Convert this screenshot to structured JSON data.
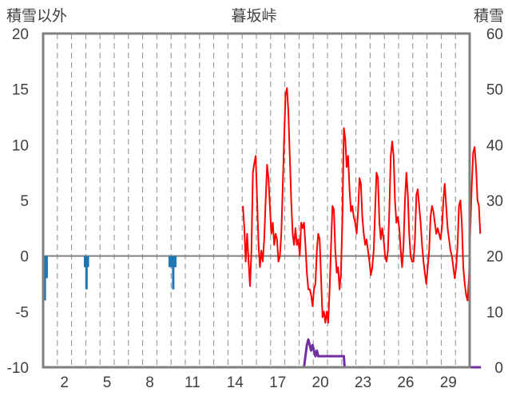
{
  "chart_data": {
    "type": "line",
    "title": "暮坂峠",
    "left_axis_label": "積雪以外",
    "right_axis_label": "積雪",
    "y_left": {
      "min": -10,
      "max": 20,
      "ticks": [
        20,
        15,
        10,
        5,
        0,
        -5,
        -10
      ]
    },
    "y_right": {
      "min": 0,
      "max": 60,
      "ticks": [
        60,
        50,
        40,
        30,
        20,
        10,
        0
      ]
    },
    "x": {
      "min": 0,
      "max": 30,
      "tick_labels": [
        "2",
        "5",
        "8",
        "11",
        "14",
        "17",
        "20",
        "23",
        "26",
        "29"
      ],
      "tick_positions": [
        1.5,
        4.5,
        7.5,
        10.5,
        13.5,
        16.5,
        19.5,
        22.5,
        25.5,
        28.5
      ],
      "grid": "dashed, every day"
    },
    "colors": {
      "temperature": "#ff0000",
      "precipitation": "#1f77b4",
      "snow": "#7030a0",
      "frame": "#808080",
      "zero_line": "#808080"
    },
    "series": [
      {
        "axis": "left",
        "style": "line",
        "color": "#ff0000",
        "points": [
          [
            14.05,
            4.5
          ],
          [
            14.15,
            2.5
          ],
          [
            14.25,
            -0.5
          ],
          [
            14.35,
            2.0
          ],
          [
            14.45,
            -0.5
          ],
          [
            14.55,
            -2.7
          ],
          [
            14.65,
            0.5
          ],
          [
            14.75,
            7.5
          ],
          [
            14.85,
            8.3
          ],
          [
            14.95,
            9.0
          ],
          [
            15.05,
            5.0
          ],
          [
            15.15,
            1.0
          ],
          [
            15.25,
            -1.0
          ],
          [
            15.35,
            0.5
          ],
          [
            15.45,
            -0.5
          ],
          [
            15.55,
            1.5
          ],
          [
            15.65,
            5.0
          ],
          [
            15.75,
            8.2
          ],
          [
            15.85,
            7.0
          ],
          [
            15.95,
            4.5
          ],
          [
            16.05,
            2.0
          ],
          [
            16.15,
            3.0
          ],
          [
            16.25,
            1.0
          ],
          [
            16.35,
            2.0
          ],
          [
            16.45,
            1.5
          ],
          [
            16.55,
            -0.5
          ],
          [
            16.65,
            0.0
          ],
          [
            16.75,
            2.0
          ],
          [
            16.85,
            6.0
          ],
          [
            16.95,
            10.5
          ],
          [
            17.05,
            14.5
          ],
          [
            17.15,
            15.1
          ],
          [
            17.25,
            13.0
          ],
          [
            17.35,
            9.0
          ],
          [
            17.45,
            5.0
          ],
          [
            17.55,
            2.0
          ],
          [
            17.65,
            1.0
          ],
          [
            17.75,
            2.5
          ],
          [
            17.85,
            1.0
          ],
          [
            17.95,
            1.5
          ],
          [
            18.05,
            0.0
          ],
          [
            18.15,
            3.0
          ],
          [
            18.25,
            2.5
          ],
          [
            18.35,
            3.0
          ],
          [
            18.45,
            1.0
          ],
          [
            18.55,
            -1.5
          ],
          [
            18.65,
            -3.0
          ],
          [
            18.75,
            -3.0
          ],
          [
            18.85,
            -3.5
          ],
          [
            18.95,
            -4.5
          ],
          [
            19.05,
            -3.0
          ],
          [
            19.15,
            -2.5
          ],
          [
            19.25,
            0.5
          ],
          [
            19.35,
            2.0
          ],
          [
            19.45,
            1.5
          ],
          [
            19.55,
            -2.0
          ],
          [
            19.65,
            -5.5
          ],
          [
            19.75,
            -5.0
          ],
          [
            19.85,
            -6.0
          ],
          [
            19.95,
            -5.0
          ],
          [
            20.05,
            -6.0
          ],
          [
            20.15,
            -3.0
          ],
          [
            20.25,
            1.0
          ],
          [
            20.35,
            4.5
          ],
          [
            20.45,
            4.2
          ],
          [
            20.55,
            0.5
          ],
          [
            20.65,
            -1.5
          ],
          [
            20.75,
            -1.0
          ],
          [
            20.85,
            -3.0
          ],
          [
            20.95,
            -1.5
          ],
          [
            21.05,
            3.5
          ],
          [
            21.15,
            11.5
          ],
          [
            21.25,
            10.5
          ],
          [
            21.35,
            8.0
          ],
          [
            21.45,
            9.0
          ],
          [
            21.55,
            6.0
          ],
          [
            21.65,
            4.0
          ],
          [
            21.75,
            4.5
          ],
          [
            21.85,
            3.5
          ],
          [
            21.95,
            3.0
          ],
          [
            22.05,
            2.0
          ],
          [
            22.15,
            4.0
          ],
          [
            22.25,
            7.0
          ],
          [
            22.35,
            6.5
          ],
          [
            22.45,
            3.5
          ],
          [
            22.55,
            2.0
          ],
          [
            22.65,
            1.0
          ],
          [
            22.75,
            1.5
          ],
          [
            22.85,
            0.5
          ],
          [
            22.95,
            -0.5
          ],
          [
            23.05,
            -1.7
          ],
          [
            23.15,
            -1.0
          ],
          [
            23.25,
            0.5
          ],
          [
            23.35,
            4.0
          ],
          [
            23.45,
            7.5
          ],
          [
            23.55,
            7.0
          ],
          [
            23.65,
            3.0
          ],
          [
            23.75,
            1.5
          ],
          [
            23.85,
            2.5
          ],
          [
            23.95,
            1.5
          ],
          [
            24.05,
            0.0
          ],
          [
            24.15,
            -0.5
          ],
          [
            24.25,
            0.5
          ],
          [
            24.35,
            4.0
          ],
          [
            24.45,
            9.0
          ],
          [
            24.55,
            10.3
          ],
          [
            24.65,
            9.0
          ],
          [
            24.75,
            5.0
          ],
          [
            24.85,
            3.0
          ],
          [
            24.95,
            3.5
          ],
          [
            25.05,
            2.5
          ],
          [
            25.15,
            0.5
          ],
          [
            25.25,
            -1.0
          ],
          [
            25.35,
            1.0
          ],
          [
            25.45,
            5.0
          ],
          [
            25.55,
            7.5
          ],
          [
            25.65,
            5.5
          ],
          [
            25.75,
            2.0
          ],
          [
            25.85,
            0.0
          ],
          [
            25.95,
            -0.5
          ],
          [
            26.05,
            -0.5
          ],
          [
            26.15,
            1.5
          ],
          [
            26.25,
            5.5
          ],
          [
            26.35,
            6.0
          ],
          [
            26.45,
            4.5
          ],
          [
            26.55,
            3.0
          ],
          [
            26.65,
            1.0
          ],
          [
            26.75,
            -0.5
          ],
          [
            26.85,
            -1.5
          ],
          [
            26.95,
            -2.5
          ],
          [
            27.05,
            -1.0
          ],
          [
            27.15,
            0.5
          ],
          [
            27.25,
            3.5
          ],
          [
            27.35,
            4.5
          ],
          [
            27.45,
            4.0
          ],
          [
            27.55,
            3.0
          ],
          [
            27.65,
            2.0
          ],
          [
            27.75,
            2.5
          ],
          [
            27.85,
            2.0
          ],
          [
            27.95,
            1.5
          ],
          [
            28.05,
            2.5
          ],
          [
            28.15,
            5.0
          ],
          [
            28.25,
            6.5
          ],
          [
            28.35,
            4.5
          ],
          [
            28.45,
            2.5
          ],
          [
            28.55,
            1.5
          ],
          [
            28.65,
            0.5
          ],
          [
            28.75,
            0.0
          ],
          [
            28.85,
            -1.0
          ],
          [
            28.95,
            -2.0
          ],
          [
            29.05,
            -1.0
          ],
          [
            29.15,
            1.0
          ],
          [
            29.25,
            4.5
          ],
          [
            29.35,
            5.0
          ],
          [
            29.45,
            3.0
          ],
          [
            29.55,
            -1.0
          ],
          [
            29.65,
            -2.5
          ],
          [
            29.75,
            -3.5
          ],
          [
            29.85,
            -4.0
          ],
          [
            29.95,
            -2.0
          ],
          [
            30.05,
            2.5
          ],
          [
            30.15,
            6.5
          ],
          [
            30.25,
            9.3
          ],
          [
            30.35,
            9.8
          ],
          [
            30.45,
            8.0
          ],
          [
            30.55,
            5.0
          ],
          [
            30.65,
            4.5
          ],
          [
            30.75,
            2.0
          ]
        ]
      },
      {
        "axis": "left",
        "style": "bar",
        "color": "#1f77b4",
        "points": [
          [
            0.12,
            -4.0
          ],
          [
            0.25,
            -2.0
          ],
          [
            2.95,
            -1.0
          ],
          [
            3.05,
            -3.0
          ],
          [
            3.15,
            -1.0
          ],
          [
            8.9,
            -1.0
          ],
          [
            9.05,
            -1.0
          ],
          [
            9.15,
            -3.0
          ],
          [
            9.3,
            -1.0
          ]
        ]
      },
      {
        "axis": "right",
        "style": "line",
        "color": "#7030a0",
        "points": [
          [
            14.0,
            0
          ],
          [
            18.35,
            0
          ],
          [
            18.45,
            2
          ],
          [
            18.55,
            4
          ],
          [
            18.65,
            5
          ],
          [
            18.75,
            4
          ],
          [
            18.85,
            3
          ],
          [
            18.95,
            4
          ],
          [
            19.05,
            3
          ],
          [
            19.15,
            2
          ],
          [
            19.25,
            3
          ],
          [
            19.35,
            2
          ],
          [
            21.15,
            2
          ],
          [
            21.2,
            0
          ],
          [
            30.8,
            0
          ]
        ]
      }
    ]
  }
}
